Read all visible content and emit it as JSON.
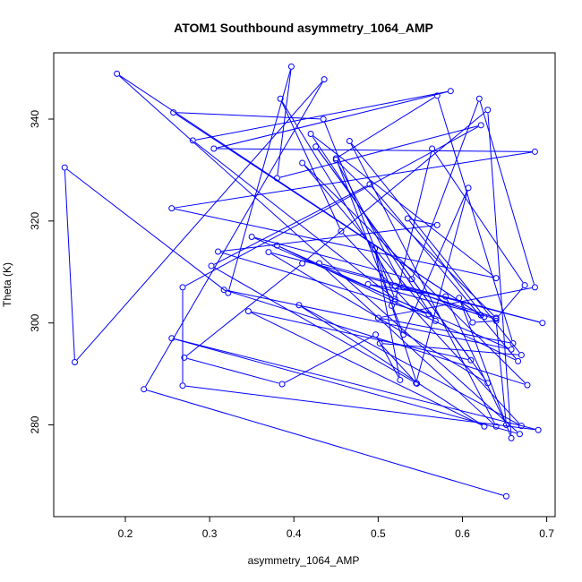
{
  "chart_data": {
    "type": "line",
    "title": "ATOM1 Southbound asymmetry_1064_AMP",
    "xlabel": "asymmetry_1064_AMP",
    "ylabel": "Theta (K)",
    "xlim": [
      0.115,
      0.71
    ],
    "ylim": [
      262,
      353
    ],
    "xticks": [
      0.2,
      0.3,
      0.4,
      0.5,
      0.6,
      0.7
    ],
    "xtick_labels": [
      "0.2",
      "0.3",
      "0.4",
      "0.5",
      "0.6",
      "0.7"
    ],
    "yticks": [
      280,
      300,
      320,
      340
    ],
    "ytick_labels": [
      "280",
      "300",
      "320",
      "340"
    ],
    "grid": false,
    "legend": "none",
    "color": "#0000ff",
    "series": [
      {
        "points": [
          [
            0.652,
            266.0
          ],
          [
            0.222,
            287.0
          ],
          [
            0.436,
            347.8
          ],
          [
            0.14,
            292.3
          ],
          [
            0.128,
            330.5
          ],
          [
            0.322,
            305.9
          ],
          [
            0.397,
            350.3
          ],
          [
            0.38,
            328.4
          ],
          [
            0.622,
            338.8
          ],
          [
            0.268,
            307.0
          ],
          [
            0.268,
            287.7
          ],
          [
            0.69,
            279.0
          ],
          [
            0.255,
            297.0
          ],
          [
            0.668,
            278.2
          ],
          [
            0.19,
            348.9
          ],
          [
            0.622,
            301.5
          ],
          [
            0.257,
            341.3
          ],
          [
            0.435,
            340.0
          ],
          [
            0.52,
            304.7
          ],
          [
            0.28,
            335.8
          ],
          [
            0.586,
            345.5
          ],
          [
            0.305,
            334.2
          ],
          [
            0.686,
            333.6
          ],
          [
            0.255,
            322.5
          ],
          [
            0.64,
            308.8
          ],
          [
            0.42,
            337.1
          ],
          [
            0.568,
            300.4
          ],
          [
            0.41,
            331.4
          ],
          [
            0.677,
            287.8
          ],
          [
            0.317,
            306.5
          ],
          [
            0.658,
            294.8
          ],
          [
            0.35,
            316.9
          ],
          [
            0.54,
            308.6
          ],
          [
            0.62,
            344.0
          ],
          [
            0.686,
            307.0
          ],
          [
            0.5,
            301.0
          ],
          [
            0.66,
            296.0
          ],
          [
            0.57,
            344.6
          ],
          [
            0.45,
            332.3
          ],
          [
            0.53,
            297.7
          ],
          [
            0.607,
            326.5
          ],
          [
            0.545,
            288.2
          ],
          [
            0.302,
            311.2
          ],
          [
            0.49,
            327.2
          ],
          [
            0.666,
            292.5
          ],
          [
            0.38,
            315.2
          ],
          [
            0.56,
            301.7
          ],
          [
            0.31,
            314.0
          ],
          [
            0.57,
            319.2
          ],
          [
            0.535,
            320.5
          ],
          [
            0.626,
            301.2
          ],
          [
            0.53,
            307.0
          ],
          [
            0.45,
            332.0
          ],
          [
            0.64,
            301.0
          ],
          [
            0.52,
            307.3
          ],
          [
            0.384,
            344.0
          ],
          [
            0.456,
            318.0
          ],
          [
            0.67,
            279.8
          ],
          [
            0.406,
            303.5
          ],
          [
            0.626,
            279.7
          ],
          [
            0.346,
            302.3
          ],
          [
            0.61,
            292.7
          ],
          [
            0.426,
            334.6
          ],
          [
            0.63,
            288.2
          ],
          [
            0.37,
            313.9
          ],
          [
            0.695,
            300.0
          ],
          [
            0.43,
            311.7
          ],
          [
            0.64,
            279.7
          ],
          [
            0.466,
            335.7
          ],
          [
            0.67,
            293.7
          ],
          [
            0.502,
            296.0
          ],
          [
            0.546,
            288.1
          ],
          [
            0.516,
            303.4
          ],
          [
            0.496,
            314.6
          ],
          [
            0.526,
            288.8
          ],
          [
            0.497,
            297.7
          ],
          [
            0.386,
            288.0
          ],
          [
            0.27,
            293.2
          ],
          [
            0.41,
            311.7
          ],
          [
            0.63,
            341.8
          ],
          [
            0.658,
            277.4
          ],
          [
            0.596,
            304.9
          ],
          [
            0.612,
            300.1
          ],
          [
            0.64,
            300.4
          ],
          [
            0.652,
            280.0
          ],
          [
            0.58,
            305.2
          ],
          [
            0.488,
            307.6
          ],
          [
            0.64,
            300.8
          ],
          [
            0.674,
            307.4
          ],
          [
            0.564,
            334.2
          ],
          [
            0.52,
            304.2
          ]
        ]
      }
    ]
  }
}
